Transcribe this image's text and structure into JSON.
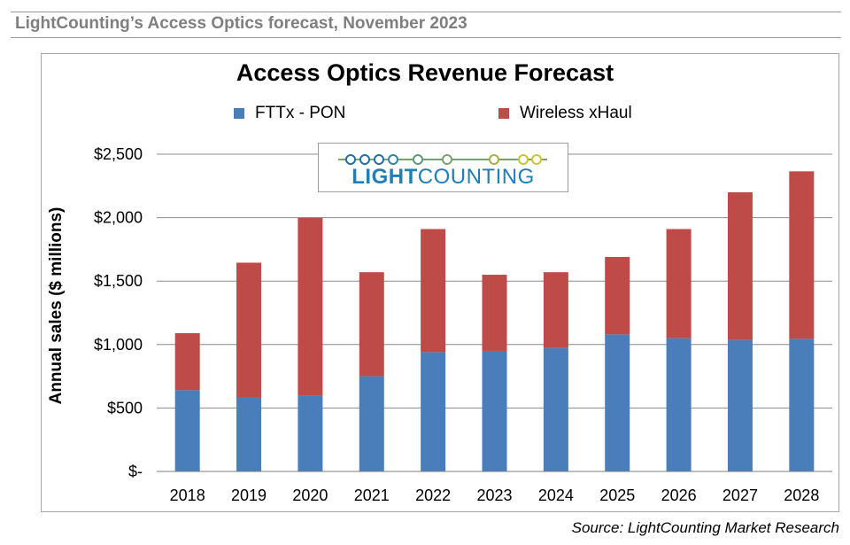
{
  "header": {
    "title": "LightCounting’s Access Optics forecast, November 2023"
  },
  "logo": {
    "text_bold": "LIGHT",
    "text_regular": "COUNTING",
    "line_color": "#1f6fa8",
    "dot_color": "#c9c92a"
  },
  "source": "Source: LightCounting Market Research",
  "chart_data": {
    "type": "bar",
    "stacked": true,
    "title": "Access Optics Revenue Forecast",
    "xlabel": "",
    "ylabel": "Annual sales ($ millions)",
    "ylim": [
      0,
      2500
    ],
    "yticks": [
      0,
      500,
      1000,
      1500,
      2000,
      2500
    ],
    "ytick_labels": [
      "$-",
      "$500",
      "$1,000",
      "$1,500",
      "$2,000",
      "$2,500"
    ],
    "grid": true,
    "legend": "top",
    "categories": [
      "2018",
      "2019",
      "2020",
      "2021",
      "2022",
      "2023",
      "2024",
      "2025",
      "2026",
      "2027",
      "2028"
    ],
    "series": [
      {
        "name": "FTTx - PON",
        "color": "#4a7ebb",
        "values": [
          640,
          580,
          600,
          750,
          940,
          950,
          975,
          1080,
          1050,
          1035,
          1045
        ]
      },
      {
        "name": "Wireless xHaul",
        "color": "#be4b48",
        "values": [
          450,
          1065,
          1400,
          820,
          970,
          600,
          595,
          610,
          860,
          1165,
          1320
        ]
      }
    ]
  }
}
